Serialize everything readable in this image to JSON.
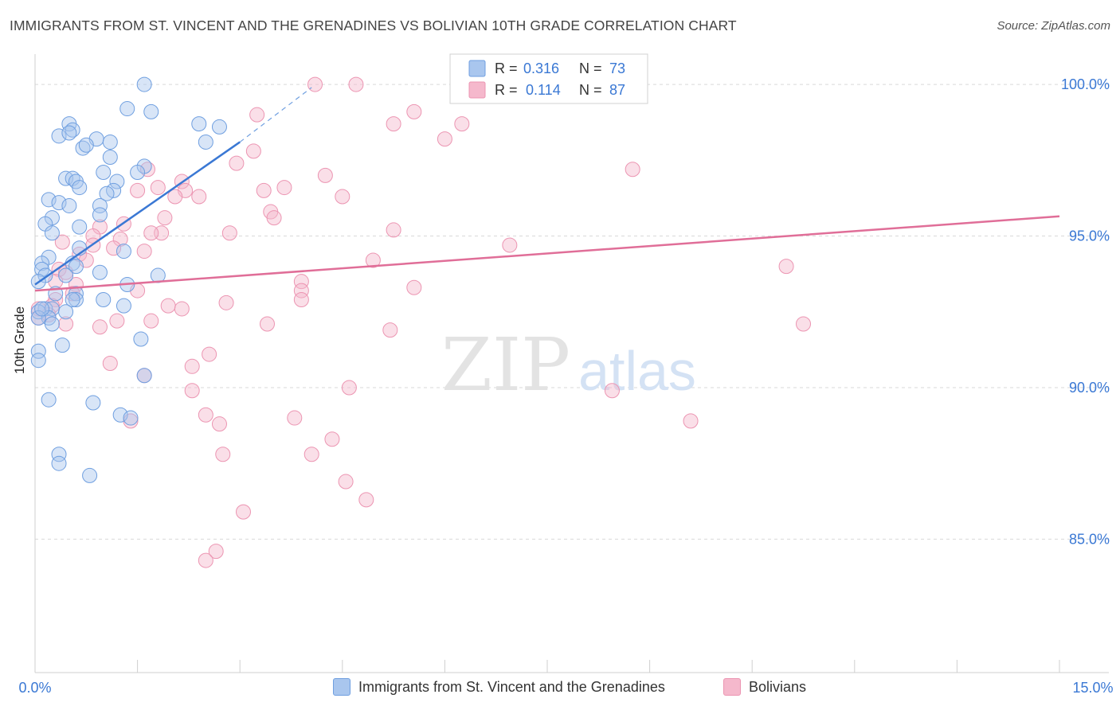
{
  "header": {
    "title": "IMMIGRANTS FROM ST. VINCENT AND THE GRENADINES VS BOLIVIAN 10TH GRADE CORRELATION CHART",
    "source": "Source: ZipAtlas.com"
  },
  "watermark": {
    "zip": "ZIP",
    "atlas": "atlas"
  },
  "colors": {
    "blue_fill": "#a9c6ee",
    "blue_stroke": "#6f9fe0",
    "blue_line": "#3a78d4",
    "pink_fill": "#f5b8cc",
    "pink_stroke": "#ec95b2",
    "pink_line": "#e06e98",
    "accent_text": "#3a78d4",
    "grid": "#d9d9d9"
  },
  "legend_top": [
    {
      "r_label": "R =",
      "r_value": "0.316",
      "n_label": "N =",
      "n_value": "73"
    },
    {
      "r_label": "R =",
      "r_value": "0.114",
      "n_label": "N =",
      "n_value": "87"
    }
  ],
  "legend_bottom": [
    {
      "label": "Immigrants from St. Vincent and the Grenadines"
    },
    {
      "label": "Bolivians"
    }
  ],
  "chart_data": {
    "type": "scatter",
    "title": "IMMIGRANTS FROM ST. VINCENT AND THE GRENADINES VS BOLIVIAN 10TH GRADE CORRELATION CHART",
    "xlabel": "",
    "ylabel": "10th Grade",
    "xlim": [
      0,
      15
    ],
    "ylim": [
      80.6,
      101.0
    ],
    "x_tick_labels": [
      "0.0%",
      "15.0%"
    ],
    "y_ticks": [
      85,
      90,
      95,
      100
    ],
    "y_tick_labels": [
      "85.0%",
      "90.0%",
      "95.0%",
      "100.0%"
    ],
    "grid": "horizontal dashed",
    "legend_position": "top-center",
    "series": [
      {
        "name": "Immigrants from St. Vincent and the Grenadines",
        "R": 0.316,
        "N": 73,
        "trend": {
          "x": [
            0.0,
            3.0
          ],
          "y": [
            93.4,
            98.1
          ],
          "dashed_extension_to": [
            4.05,
            99.9
          ]
        },
        "points": [
          [
            1.6,
            100.0
          ],
          [
            1.35,
            99.2
          ],
          [
            1.7,
            99.1
          ],
          [
            2.4,
            98.7
          ],
          [
            2.7,
            98.6
          ],
          [
            0.5,
            98.7
          ],
          [
            0.55,
            98.5
          ],
          [
            0.35,
            98.3
          ],
          [
            0.5,
            98.4
          ],
          [
            0.9,
            98.2
          ],
          [
            1.1,
            98.1
          ],
          [
            0.7,
            97.9
          ],
          [
            0.75,
            98.0
          ],
          [
            2.5,
            98.1
          ],
          [
            1.1,
            97.6
          ],
          [
            1.6,
            97.3
          ],
          [
            1.5,
            97.1
          ],
          [
            1.0,
            97.1
          ],
          [
            0.45,
            96.9
          ],
          [
            0.55,
            96.9
          ],
          [
            0.6,
            96.8
          ],
          [
            1.2,
            96.8
          ],
          [
            0.65,
            96.6
          ],
          [
            1.15,
            96.5
          ],
          [
            0.2,
            96.2
          ],
          [
            0.35,
            96.1
          ],
          [
            0.5,
            96.0
          ],
          [
            0.95,
            96.0
          ],
          [
            0.95,
            95.7
          ],
          [
            0.25,
            95.6
          ],
          [
            0.15,
            95.4
          ],
          [
            0.65,
            95.3
          ],
          [
            0.25,
            95.1
          ],
          [
            0.65,
            94.6
          ],
          [
            1.3,
            94.5
          ],
          [
            0.2,
            94.3
          ],
          [
            0.1,
            94.1
          ],
          [
            0.55,
            94.1
          ],
          [
            0.1,
            93.9
          ],
          [
            0.15,
            93.7
          ],
          [
            0.6,
            94.0
          ],
          [
            0.95,
            93.8
          ],
          [
            1.8,
            93.7
          ],
          [
            1.35,
            93.4
          ],
          [
            0.05,
            93.5
          ],
          [
            0.3,
            93.1
          ],
          [
            0.6,
            93.1
          ],
          [
            0.6,
            92.9
          ],
          [
            0.55,
            92.9
          ],
          [
            1.0,
            92.9
          ],
          [
            1.3,
            92.7
          ],
          [
            0.15,
            92.6
          ],
          [
            0.25,
            92.6
          ],
          [
            0.05,
            92.5
          ],
          [
            0.45,
            92.5
          ],
          [
            0.2,
            92.3
          ],
          [
            0.25,
            92.1
          ],
          [
            0.4,
            91.4
          ],
          [
            1.55,
            91.6
          ],
          [
            0.05,
            91.2
          ],
          [
            0.05,
            90.9
          ],
          [
            1.6,
            90.4
          ],
          [
            0.2,
            89.6
          ],
          [
            0.85,
            89.5
          ],
          [
            1.25,
            89.1
          ],
          [
            1.4,
            89.0
          ],
          [
            0.35,
            87.8
          ],
          [
            0.35,
            87.5
          ],
          [
            0.8,
            87.1
          ],
          [
            0.05,
            92.3
          ],
          [
            0.1,
            92.6
          ],
          [
            0.45,
            93.7
          ],
          [
            1.05,
            96.4
          ]
        ]
      },
      {
        "name": "Bolivians",
        "R": 0.114,
        "N": 87,
        "trend": {
          "x": [
            0.0,
            15.0
          ],
          "y": [
            93.2,
            95.65
          ]
        },
        "points": [
          [
            4.1,
            100.0
          ],
          [
            4.7,
            100.0
          ],
          [
            3.25,
            99.0
          ],
          [
            5.55,
            99.1
          ],
          [
            5.25,
            98.7
          ],
          [
            6.25,
            98.7
          ],
          [
            6.0,
            98.2
          ],
          [
            7.2,
            100.0
          ],
          [
            3.2,
            97.8
          ],
          [
            2.95,
            97.4
          ],
          [
            1.65,
            97.2
          ],
          [
            8.75,
            97.2
          ],
          [
            4.25,
            97.0
          ],
          [
            2.15,
            96.8
          ],
          [
            1.8,
            96.6
          ],
          [
            3.35,
            96.5
          ],
          [
            3.65,
            96.6
          ],
          [
            1.5,
            96.5
          ],
          [
            2.2,
            96.5
          ],
          [
            2.4,
            96.3
          ],
          [
            4.5,
            96.3
          ],
          [
            2.05,
            96.3
          ],
          [
            3.45,
            95.8
          ],
          [
            3.5,
            95.6
          ],
          [
            1.9,
            95.6
          ],
          [
            1.3,
            95.4
          ],
          [
            2.85,
            95.1
          ],
          [
            1.85,
            95.1
          ],
          [
            5.25,
            95.2
          ],
          [
            0.95,
            95.3
          ],
          [
            0.85,
            95.0
          ],
          [
            1.25,
            94.9
          ],
          [
            0.4,
            94.8
          ],
          [
            6.95,
            94.7
          ],
          [
            1.15,
            94.6
          ],
          [
            0.85,
            94.7
          ],
          [
            1.6,
            94.5
          ],
          [
            0.65,
            94.4
          ],
          [
            0.75,
            94.2
          ],
          [
            4.95,
            94.2
          ],
          [
            11.0,
            94.0
          ],
          [
            0.35,
            93.9
          ],
          [
            0.45,
            93.8
          ],
          [
            3.9,
            93.5
          ],
          [
            0.6,
            93.4
          ],
          [
            5.55,
            93.3
          ],
          [
            1.5,
            93.2
          ],
          [
            3.9,
            93.2
          ],
          [
            0.55,
            93.1
          ],
          [
            0.3,
            92.9
          ],
          [
            3.9,
            92.9
          ],
          [
            2.8,
            92.8
          ],
          [
            1.95,
            92.7
          ],
          [
            2.15,
            92.6
          ],
          [
            0.25,
            92.7
          ],
          [
            0.05,
            92.6
          ],
          [
            0.05,
            92.3
          ],
          [
            0.2,
            92.4
          ],
          [
            1.2,
            92.2
          ],
          [
            1.7,
            92.2
          ],
          [
            3.4,
            92.1
          ],
          [
            0.45,
            92.1
          ],
          [
            0.95,
            92.0
          ],
          [
            5.2,
            91.9
          ],
          [
            11.25,
            92.1
          ],
          [
            2.55,
            91.1
          ],
          [
            1.1,
            90.8
          ],
          [
            2.3,
            90.7
          ],
          [
            1.6,
            90.4
          ],
          [
            4.6,
            90.0
          ],
          [
            2.3,
            89.9
          ],
          [
            8.45,
            89.9
          ],
          [
            2.5,
            89.1
          ],
          [
            3.8,
            89.0
          ],
          [
            2.7,
            88.8
          ],
          [
            1.4,
            88.9
          ],
          [
            9.6,
            88.9
          ],
          [
            4.35,
            88.3
          ],
          [
            2.75,
            87.8
          ],
          [
            4.05,
            87.8
          ],
          [
            4.55,
            86.9
          ],
          [
            4.85,
            86.3
          ],
          [
            3.05,
            85.9
          ],
          [
            2.65,
            84.6
          ],
          [
            2.5,
            84.3
          ],
          [
            0.3,
            93.5
          ],
          [
            1.7,
            95.1
          ]
        ]
      }
    ]
  }
}
